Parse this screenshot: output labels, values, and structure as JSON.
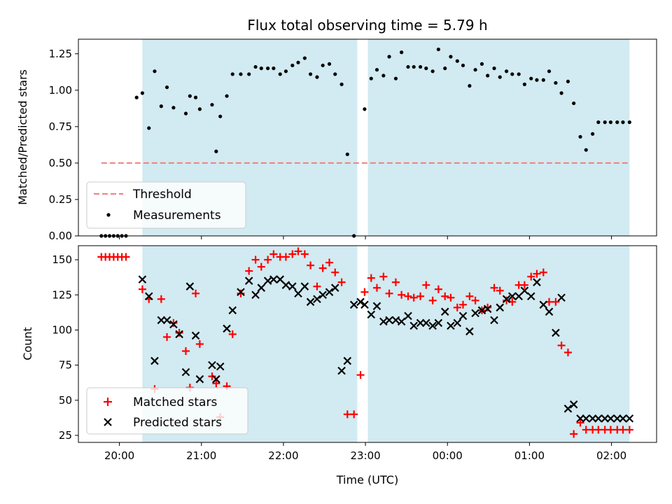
{
  "chart_data": [
    {
      "type": "scatter",
      "title": "Flux total observing time = 5.79 h",
      "xlabel": "",
      "ylabel": "Matched/Predicted stars",
      "ylim": [
        0,
        1.35
      ],
      "yticks": [
        0.0,
        0.25,
        0.5,
        0.75,
        1.0,
        1.25
      ],
      "ytick_labels": [
        "0.00",
        "0.25",
        "0.50",
        "0.75",
        "1.00",
        "1.25"
      ],
      "x_unit": "hours since 19:00 UTC",
      "xlim": [
        0.5,
        7.55
      ],
      "shaded_intervals": [
        [
          1.28,
          3.9
        ],
        [
          4.03,
          7.22
        ]
      ],
      "shade_color": "#add8e6",
      "legend_position": "lower left",
      "series": [
        {
          "name": "Threshold",
          "kind": "line",
          "style": "dashed",
          "color": "#f08080",
          "x": [
            0.78,
            7.22
          ],
          "y": [
            0.5,
            0.5
          ]
        },
        {
          "name": "Measurements",
          "kind": "points",
          "color": "#000000",
          "x": [
            0.78,
            0.83,
            0.88,
            0.93,
            0.98,
            1.03,
            1.08,
            1.21,
            1.28,
            1.36,
            1.43,
            1.51,
            1.58,
            1.66,
            1.81,
            1.86,
            1.93,
            1.98,
            2.13,
            2.18,
            2.23,
            2.31,
            2.38,
            2.48,
            2.58,
            2.66,
            2.73,
            2.81,
            2.88,
            2.96,
            3.03,
            3.11,
            3.18,
            3.26,
            3.33,
            3.41,
            3.48,
            3.56,
            3.63,
            3.71,
            3.78,
            3.86,
            3.99,
            4.07,
            4.14,
            4.22,
            4.29,
            4.37,
            4.44,
            4.52,
            4.59,
            4.67,
            4.74,
            4.82,
            4.89,
            4.97,
            5.04,
            5.12,
            5.19,
            5.27,
            5.34,
            5.42,
            5.49,
            5.57,
            5.64,
            5.72,
            5.79,
            5.87,
            5.94,
            6.02,
            6.09,
            6.17,
            6.24,
            6.32,
            6.39,
            6.47,
            6.54,
            6.62,
            6.69,
            6.77,
            6.84,
            6.92,
            6.99,
            7.07,
            7.14,
            7.22
          ],
          "y": [
            0,
            0,
            0,
            0,
            0,
            0,
            0,
            0.95,
            0.98,
            0.74,
            1.13,
            0.89,
            1.02,
            0.88,
            0.84,
            0.96,
            0.95,
            0.87,
            0.9,
            0.58,
            0.82,
            0.96,
            1.11,
            1.11,
            1.11,
            1.16,
            1.15,
            1.15,
            1.15,
            1.11,
            1.13,
            1.17,
            1.19,
            1.22,
            1.11,
            1.09,
            1.17,
            1.18,
            1.11,
            1.04,
            0.56,
            0,
            0.87,
            1.08,
            1.14,
            1.1,
            1.23,
            1.08,
            1.26,
            1.16,
            1.16,
            1.16,
            1.15,
            1.13,
            1.28,
            1.15,
            1.23,
            1.2,
            1.17,
            1.03,
            1.14,
            1.18,
            1.1,
            1.15,
            1.09,
            1.13,
            1.11,
            1.11,
            1.04,
            1.08,
            1.07,
            1.07,
            1.13,
            1.05,
            0.98,
            1.06,
            0.91,
            0.68,
            0.59,
            0.7,
            0.78,
            0.78,
            0.78,
            0.78,
            0.78,
            0.78
          ]
        }
      ]
    },
    {
      "type": "scatter",
      "title": "",
      "xlabel": "Time (UTC)",
      "ylabel": "Count",
      "ylim": [
        20,
        160
      ],
      "yticks": [
        25,
        50,
        75,
        100,
        125,
        150
      ],
      "ytick_labels": [
        "25",
        "50",
        "75",
        "100",
        "125",
        "150"
      ],
      "x_unit": "hours since 19:00 UTC",
      "xlim": [
        0.5,
        7.55
      ],
      "xticks": [
        1,
        2,
        3,
        4,
        5,
        6,
        7
      ],
      "xtick_labels": [
        "20:00",
        "21:00",
        "22:00",
        "23:00",
        "00:00",
        "01:00",
        "02:00"
      ],
      "shaded_intervals": [
        [
          1.28,
          3.9
        ],
        [
          4.03,
          7.22
        ]
      ],
      "shade_color": "#add8e6",
      "legend_position": "lower left",
      "series": [
        {
          "name": "Matched stars",
          "marker": "+",
          "color": "#ff0000",
          "x": [
            0.78,
            0.83,
            0.88,
            0.93,
            0.98,
            1.03,
            1.08,
            1.28,
            1.36,
            1.43,
            1.51,
            1.58,
            1.66,
            1.73,
            1.81,
            1.86,
            1.93,
            1.98,
            2.13,
            2.18,
            2.23,
            2.31,
            2.38,
            2.48,
            2.58,
            2.66,
            2.73,
            2.81,
            2.88,
            2.96,
            3.03,
            3.11,
            3.18,
            3.26,
            3.33,
            3.41,
            3.48,
            3.56,
            3.63,
            3.71,
            3.78,
            3.86,
            3.94,
            3.99,
            4.07,
            4.14,
            4.22,
            4.29,
            4.37,
            4.44,
            4.52,
            4.59,
            4.67,
            4.74,
            4.82,
            4.89,
            4.97,
            5.04,
            5.12,
            5.19,
            5.27,
            5.34,
            5.42,
            5.49,
            5.57,
            5.64,
            5.72,
            5.79,
            5.87,
            5.94,
            6.02,
            6.09,
            6.17,
            6.24,
            6.32,
            6.39,
            6.47,
            6.54,
            6.62,
            6.69,
            6.77,
            6.84,
            6.92,
            6.99,
            7.07,
            7.14,
            7.22
          ],
          "y": [
            152,
            152,
            152,
            152,
            152,
            152,
            152,
            129,
            122,
            58,
            122,
            95,
            105,
            98,
            85,
            59,
            126,
            90,
            67,
            62,
            38,
            60,
            97,
            126,
            142,
            150,
            145,
            150,
            154,
            152,
            152,
            154,
            156,
            154,
            146,
            131,
            144,
            148,
            141,
            134,
            40,
            40,
            68,
            127,
            137,
            130,
            138,
            126,
            134,
            125,
            124,
            123,
            124,
            132,
            121,
            129,
            124,
            123,
            116,
            118,
            124,
            121,
            114,
            116,
            130,
            128,
            121,
            120,
            132,
            132,
            138,
            140,
            141,
            120,
            120,
            89,
            84,
            26,
            34,
            29,
            29,
            29,
            29,
            29,
            29,
            29,
            29
          ]
        },
        {
          "name": "Predicted stars",
          "marker": "x",
          "color": "#000000",
          "x": [
            1.28,
            1.36,
            1.43,
            1.51,
            1.58,
            1.66,
            1.73,
            1.81,
            1.86,
            1.93,
            1.98,
            2.13,
            2.18,
            2.23,
            2.31,
            2.38,
            2.48,
            2.58,
            2.66,
            2.73,
            2.81,
            2.88,
            2.96,
            3.03,
            3.11,
            3.18,
            3.26,
            3.33,
            3.41,
            3.48,
            3.56,
            3.63,
            3.71,
            3.78,
            3.86,
            3.94,
            3.99,
            4.07,
            4.14,
            4.22,
            4.29,
            4.37,
            4.44,
            4.52,
            4.59,
            4.67,
            4.74,
            4.82,
            4.89,
            4.97,
            5.04,
            5.12,
            5.19,
            5.27,
            5.34,
            5.42,
            5.49,
            5.57,
            5.64,
            5.72,
            5.79,
            5.87,
            5.94,
            6.02,
            6.09,
            6.17,
            6.24,
            6.32,
            6.39,
            6.47,
            6.54,
            6.62,
            6.69,
            6.77,
            6.84,
            6.92,
            6.99,
            7.07,
            7.14,
            7.22
          ],
          "y": [
            136,
            124,
            78,
            107,
            107,
            104,
            97,
            70,
            131,
            96,
            65,
            75,
            65,
            74,
            101,
            114,
            127,
            135,
            125,
            130,
            135,
            136,
            136,
            132,
            131,
            126,
            131,
            120,
            122,
            125,
            127,
            130,
            71,
            78,
            118,
            120,
            118,
            111,
            117,
            106,
            107,
            107,
            106,
            110,
            103,
            105,
            105,
            103,
            105,
            113,
            103,
            105,
            110,
            99,
            112,
            114,
            115,
            107,
            116,
            122,
            124,
            124,
            128,
            124,
            134,
            118,
            113,
            98,
            123,
            44,
            47,
            37,
            37,
            37,
            37,
            37,
            37,
            37,
            37,
            37
          ]
        }
      ]
    }
  ]
}
